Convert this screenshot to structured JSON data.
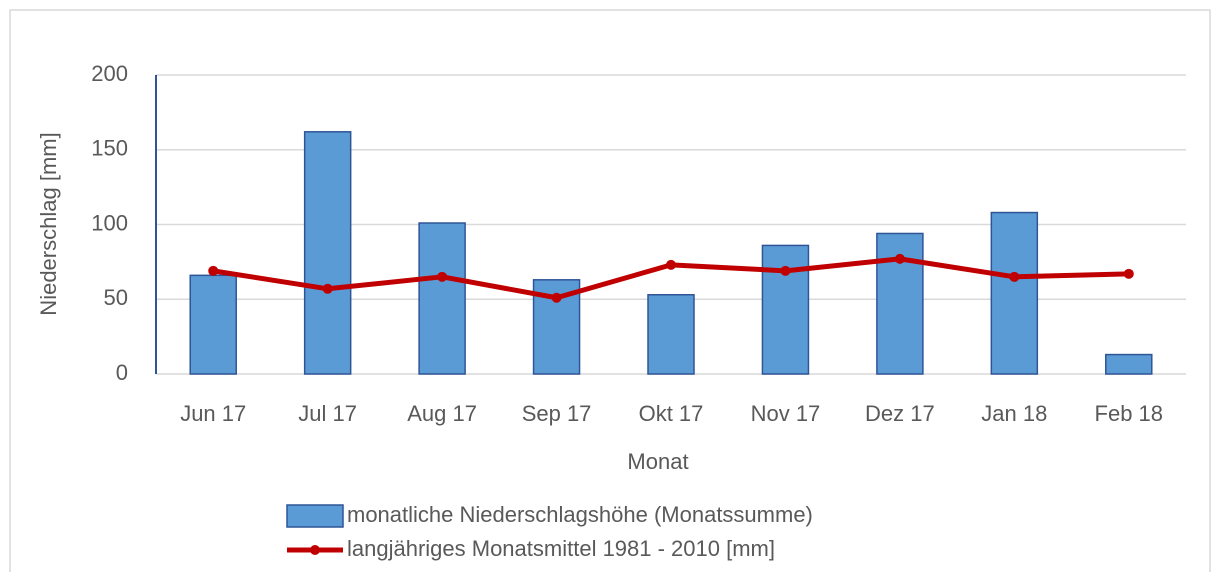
{
  "chart_data": {
    "type": "bar",
    "categories": [
      "Jun 17",
      "Jul 17",
      "Aug 17",
      "Sep 17",
      "Okt 17",
      "Nov 17",
      "Dez 17",
      "Jan 18",
      "Feb 18"
    ],
    "series": [
      {
        "name": "monatliche Niederschlagshöhe (Monatssumme)",
        "type": "bar",
        "color": "#5b9bd5",
        "edge": "#2f5597",
        "values": [
          66,
          162,
          101,
          63,
          53,
          86,
          94,
          108,
          13
        ]
      },
      {
        "name": "langjähriges Monatsmittel 1981 - 2010 [mm]",
        "type": "line",
        "color": "#c00000",
        "values": [
          69,
          57,
          65,
          51,
          73,
          69,
          77,
          65,
          67
        ]
      }
    ],
    "xlabel": "Monat",
    "ylabel": "Niederschlag [mm]",
    "ylim": [
      0,
      200
    ],
    "yticks": [
      0,
      50,
      100,
      150,
      200
    ],
    "grid": true,
    "legend": "bottom"
  }
}
